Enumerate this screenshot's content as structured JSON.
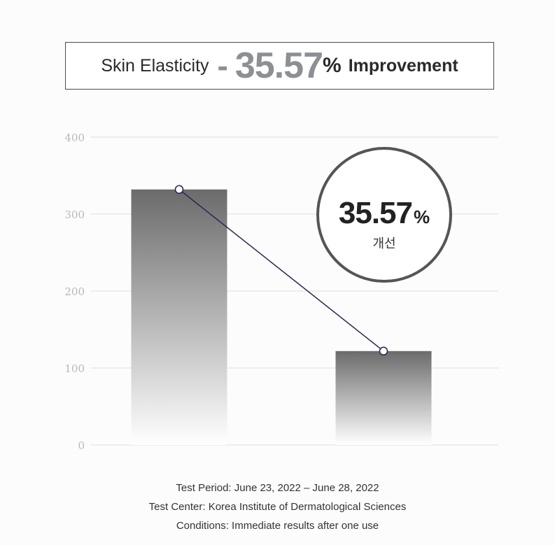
{
  "title": {
    "lead": "Skin Elasticity",
    "dash": "-",
    "value": "35.57",
    "percent": "%",
    "trail": "Improvement"
  },
  "badge": {
    "value": "35.57",
    "percent": "%",
    "label": "개선"
  },
  "chart_data": {
    "type": "bar",
    "categories": [
      "",
      ""
    ],
    "values": [
      332,
      122
    ],
    "ylim": [
      0,
      400
    ],
    "yticks": [
      0,
      100,
      200,
      300,
      400
    ],
    "grid": true,
    "line_overlay": true,
    "colors": {
      "bar_top": "#6b6b6b",
      "bar_bottom": "#ffffff",
      "line": "#262650",
      "grid": "#dedede",
      "tick": "#b8b8b8"
    }
  },
  "footer": {
    "period": "Test Period: June 23, 2022 – June 28, 2022",
    "center": "Test Center: Korea Institute of Dermatological Sciences",
    "conditions": "Conditions: Immediate results after one use"
  }
}
